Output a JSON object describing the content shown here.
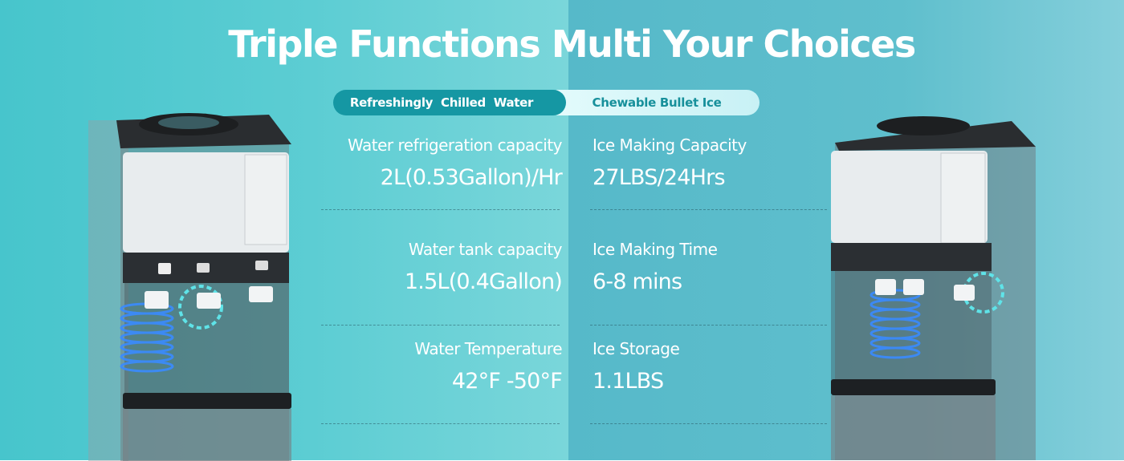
{
  "title": "Triple Functions Multi Your Choices",
  "tabs": [
    {
      "label": "Refreshingly  Chilled  Water",
      "active": true
    },
    {
      "label": "Chewable Bullet Ice",
      "active": false
    }
  ],
  "water_specs": [
    {
      "label": "Water refrigeration capacity",
      "value": "2L(0.53Gallon)/Hr"
    },
    {
      "label": "Water tank capacity",
      "value": "1.5L(0.4Gallon)"
    },
    {
      "label": "Water Temperature",
      "value": "42°F -50°F"
    }
  ],
  "ice_specs": [
    {
      "label": "Ice Making Capacity",
      "value": "27LBS/24Hrs"
    },
    {
      "label": "Ice Making Time",
      "value": "6-8 mins"
    },
    {
      "label": "Ice Storage",
      "value": "1.1LBS"
    }
  ],
  "colors": {
    "accent": "#1597a3",
    "bg_left": "#5ccdd3",
    "bg_right": "#5fbfcd",
    "cooling_coil": "#2a7cf0"
  }
}
